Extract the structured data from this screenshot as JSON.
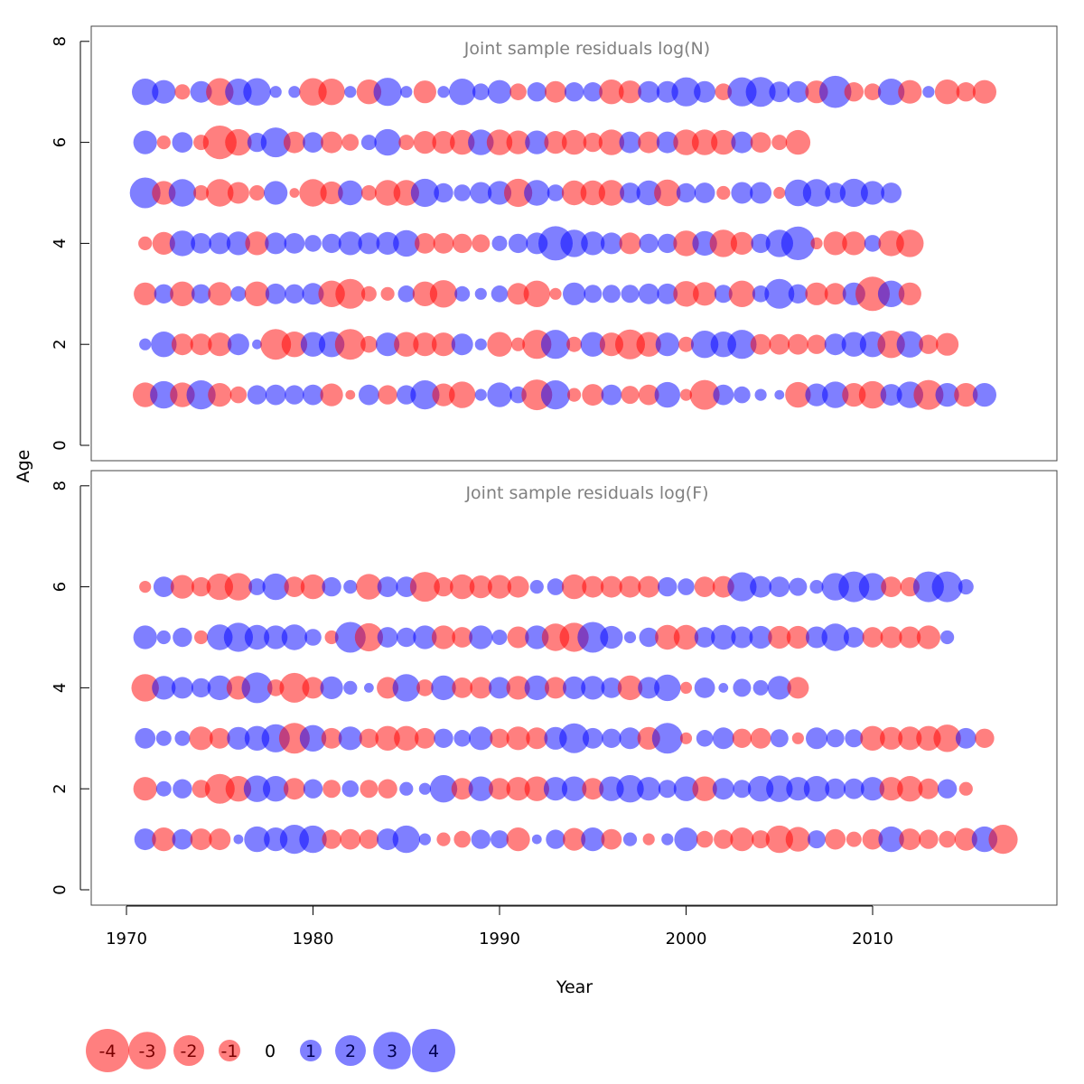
{
  "chart_data": {
    "type": "scatter",
    "subtype": "bubble",
    "xlabel": "Year",
    "ylabel": "Age",
    "xlim": [
      1970,
      2017
    ],
    "x_ticks": [
      "1970",
      "1980",
      "1990",
      "2000",
      "2010"
    ],
    "colors": {
      "positive": "#0000ff",
      "negative": "#ff0000",
      "opacity": 0.5
    },
    "size_legend": {
      "entries": [
        "-4",
        "-3",
        "-2",
        "-1",
        "0",
        "1",
        "2",
        "3",
        "4"
      ],
      "values": [
        -4,
        -3,
        -2,
        -1,
        0,
        1,
        2,
        3,
        4
      ]
    },
    "panels": [
      {
        "title": "Joint sample residuals log(N)",
        "ylim": [
          0,
          8
        ],
        "y_ticks": [
          "0",
          "2",
          "4",
          "6",
          "8"
        ],
        "years_start": 1971,
        "ages": [
          1,
          2,
          3,
          4,
          5,
          6,
          7
        ],
        "residuals": {
          "1": [
            -1.3,
            1.6,
            -1.3,
            1.8,
            -1.2,
            -0.6,
            0.8,
            0.9,
            0.8,
            0.9,
            -1.1,
            -0.2,
            0.9,
            -0.8,
            0.8,
            1.8,
            -1.1,
            -1.5,
            0.3,
            1.3,
            0.6,
            -2.0,
            1.8,
            -0.4,
            -1.0,
            0.9,
            -0.7,
            -0.9,
            1.4,
            -0.3,
            -1.9,
            0.9,
            0.6,
            0.3,
            0.2,
            -1.4,
            1.1,
            1.5,
            -1.2,
            -1.6,
            1.0,
            1.5,
            -1.9,
            1.2,
            -1.2,
            1.2
          ],
          "2": [
            0.3,
            1.4,
            -1.0,
            -1.0,
            -1.2,
            1.0,
            0.2,
            -2.0,
            -1.4,
            1.3,
            1.4,
            -2.0,
            -0.6,
            1.2,
            -1.3,
            -1.2,
            -1.2,
            1.0,
            0.3,
            -1.3,
            -0.4,
            -1.8,
            1.8,
            -0.5,
            1.3,
            -1.2,
            -1.9,
            -1.3,
            1.2,
            -0.5,
            1.6,
            1.4,
            1.8,
            -0.9,
            -0.9,
            -0.9,
            -0.8,
            1.0,
            1.3,
            1.4,
            -1.6,
            1.5,
            -0.8,
            -1.1
          ],
          "3": [
            -1.1,
            0.8,
            -1.3,
            0.8,
            -1.2,
            0.5,
            -1.3,
            0.9,
            0.8,
            1.0,
            -1.5,
            -1.9,
            -0.5,
            -0.4,
            0.6,
            -1.3,
            -1.6,
            0.5,
            0.3,
            0.6,
            -1.0,
            -1.5,
            -0.3,
            1.1,
            0.7,
            0.7,
            0.7,
            0.9,
            0.9,
            -1.4,
            -1.2,
            0.7,
            -1.5,
            0.6,
            1.9,
            0.8,
            -1.1,
            -1.0,
            1.1,
            -2.5,
            1.5,
            -1.1
          ],
          "4": [
            -0.4,
            -1.1,
            1.4,
            0.9,
            1.0,
            1.2,
            -1.2,
            1.0,
            0.9,
            0.6,
            0.8,
            1.2,
            1.0,
            1.1,
            1.5,
            -0.9,
            -0.9,
            -0.8,
            -0.7,
            0.5,
            0.8,
            1.0,
            2.5,
            1.6,
            1.2,
            1.0,
            -1.0,
            0.8,
            0.8,
            -1.4,
            1.3,
            -1.6,
            -1.1,
            0.8,
            1.6,
            2.4,
            -0.3,
            -1.2,
            -1.2,
            0.6,
            -1.4,
            -1.6
          ],
          "5": [
            2.0,
            -1.2,
            1.6,
            -0.5,
            -1.6,
            -1.0,
            -0.5,
            1.2,
            -0.2,
            -1.6,
            -1.1,
            1.3,
            -0.5,
            -1.4,
            -1.4,
            1.7,
            0.8,
            0.6,
            1.0,
            1.2,
            -1.7,
            1.4,
            0.6,
            -1.3,
            -1.3,
            -1.4,
            0.9,
            1.3,
            -1.5,
            0.8,
            0.9,
            -0.4,
            1.0,
            1.0,
            -0.3,
            1.5,
            1.6,
            0.9,
            1.7,
            1.2,
            0.9
          ],
          "6": [
            1.2,
            -0.4,
            0.9,
            -0.5,
            -2.4,
            -1.5,
            0.8,
            1.9,
            -1.0,
            0.9,
            -1.0,
            -0.6,
            0.5,
            1.5,
            -0.5,
            -1.1,
            -1.1,
            -1.3,
            1.4,
            -1.4,
            -1.2,
            1.2,
            -1.1,
            -1.3,
            -0.8,
            -1.4,
            1.0,
            -1.0,
            1.0,
            -1.4,
            -1.4,
            -1.3,
            1.0,
            -0.9,
            -0.5,
            -1.3
          ],
          "7": [
            1.5,
            1.2,
            -0.5,
            1.0,
            -1.6,
            1.5,
            1.6,
            0.3,
            0.3,
            -1.6,
            -1.5,
            0.3,
            -1.3,
            1.7,
            0.3,
            -1.1,
            0.3,
            1.5,
            0.6,
            1.2,
            -0.6,
            0.8,
            -1.0,
            0.8,
            0.8,
            -1.3,
            -1.1,
            1.0,
            1.0,
            1.8,
            1.0,
            -0.6,
            1.8,
            1.9,
            0.9,
            1.0,
            -1.1,
            2.2,
            -0.8,
            -0.6,
            1.5,
            -1.2,
            0.3,
            -1.3,
            -0.8,
            -1.2
          ]
        }
      },
      {
        "title": "Joint sample residuals log(F)",
        "ylim": [
          0,
          8
        ],
        "y_ticks": [
          "0",
          "2",
          "4",
          "6",
          "8"
        ],
        "years_start": 1971,
        "ages": [
          1,
          2,
          3,
          4,
          5,
          6
        ],
        "residuals": {
          "1": [
            1.0,
            -1.2,
            0.9,
            -1.0,
            -1.0,
            0.2,
            1.4,
            1.2,
            1.8,
            1.6,
            -0.8,
            -0.9,
            -0.8,
            1.0,
            1.6,
            0.3,
            -0.4,
            -0.6,
            0.8,
            0.7,
            -1.2,
            0.2,
            0.8,
            -1.1,
            1.2,
            -0.9,
            0.4,
            -0.3,
            0.3,
            1.2,
            -0.6,
            -0.8,
            -1.2,
            -0.7,
            -1.6,
            -1.3,
            0.7,
            -0.9,
            -0.5,
            -0.9,
            1.4,
            -1.0,
            -0.8,
            -0.6,
            -1.1,
            1.4,
            -1.8
          ],
          "2": [
            -1.2,
            0.5,
            0.8,
            -0.7,
            -1.9,
            -1.4,
            1.5,
            1.4,
            -1.0,
            0.8,
            -0.7,
            0.6,
            -0.7,
            -0.8,
            0.4,
            0.3,
            1.6,
            -1.0,
            1.3,
            -1.0,
            -1.2,
            -1.3,
            1.2,
            1.3,
            -1.0,
            1.3,
            1.6,
            1.2,
            0.7,
            1.3,
            -1.3,
            1.0,
            0.7,
            1.4,
            1.5,
            1.2,
            1.4,
            0.9,
            0.9,
            1.2,
            -1.2,
            -1.4,
            -0.9,
            0.8,
            -0.4
          ],
          "3": [
            0.9,
            0.5,
            0.5,
            -1.2,
            -0.9,
            1.1,
            1.3,
            1.7,
            -2.0,
            1.5,
            -0.9,
            1.2,
            -0.8,
            -1.3,
            -1.3,
            -0.9,
            0.8,
            0.6,
            1.2,
            -0.8,
            -1.2,
            -1.0,
            1.1,
            1.9,
            0.9,
            0.8,
            1.0,
            -1.1,
            2.0,
            -0.3,
            0.6,
            1.0,
            -0.8,
            -0.9,
            0.7,
            -0.3,
            1.0,
            0.7,
            0.7,
            -1.3,
            -1.1,
            -1.2,
            -1.3,
            -1.6,
            0.9,
            -0.8
          ],
          "4": [
            -1.6,
            1.2,
            1.0,
            0.8,
            1.3,
            -1.2,
            2.0,
            -0.6,
            -1.9,
            -1.0,
            1.1,
            0.4,
            0.2,
            -1.0,
            1.6,
            -0.6,
            1.3,
            -0.9,
            -1.0,
            1.0,
            -1.2,
            1.3,
            -1.0,
            1.1,
            1.2,
            0.9,
            -1.3,
            1.0,
            1.5,
            -0.3,
            0.9,
            0.2,
            0.7,
            0.5,
            1.2,
            -1.0
          ],
          "5": [
            1.2,
            0.4,
            0.8,
            -0.4,
            1.4,
            1.8,
            1.3,
            1.2,
            1.4,
            0.6,
            -0.4,
            2.0,
            -1.7,
            0.9,
            0.8,
            1.2,
            -1.2,
            -0.9,
            1.2,
            0.5,
            -1.0,
            1.2,
            -1.6,
            -1.8,
            2.0,
            1.1,
            0.3,
            0.8,
            -1.3,
            -1.3,
            0.9,
            1.3,
            1.0,
            1.1,
            -1.1,
            -1.1,
            1.0,
            1.6,
            0.9,
            -0.9,
            -1.0,
            -1.0,
            -1.2,
            0.4
          ],
          "6": [
            -0.3,
            0.9,
            -1.2,
            -0.8,
            -1.5,
            -1.6,
            0.6,
            1.5,
            -0.9,
            -1.3,
            0.8,
            0.4,
            -1.4,
            0.9,
            0.9,
            -1.9,
            -0.8,
            -1.3,
            -1.1,
            -1.2,
            -1.0,
            0.4,
            0.6,
            -1.3,
            -1.0,
            -1.0,
            -1.0,
            -1.0,
            0.8,
            0.6,
            -0.9,
            -1.0,
            1.8,
            1.0,
            0.9,
            0.7,
            0.4,
            1.6,
            2.0,
            1.6,
            -0.9,
            -0.8,
            2.0,
            2.0,
            0.5
          ]
        }
      }
    ]
  }
}
